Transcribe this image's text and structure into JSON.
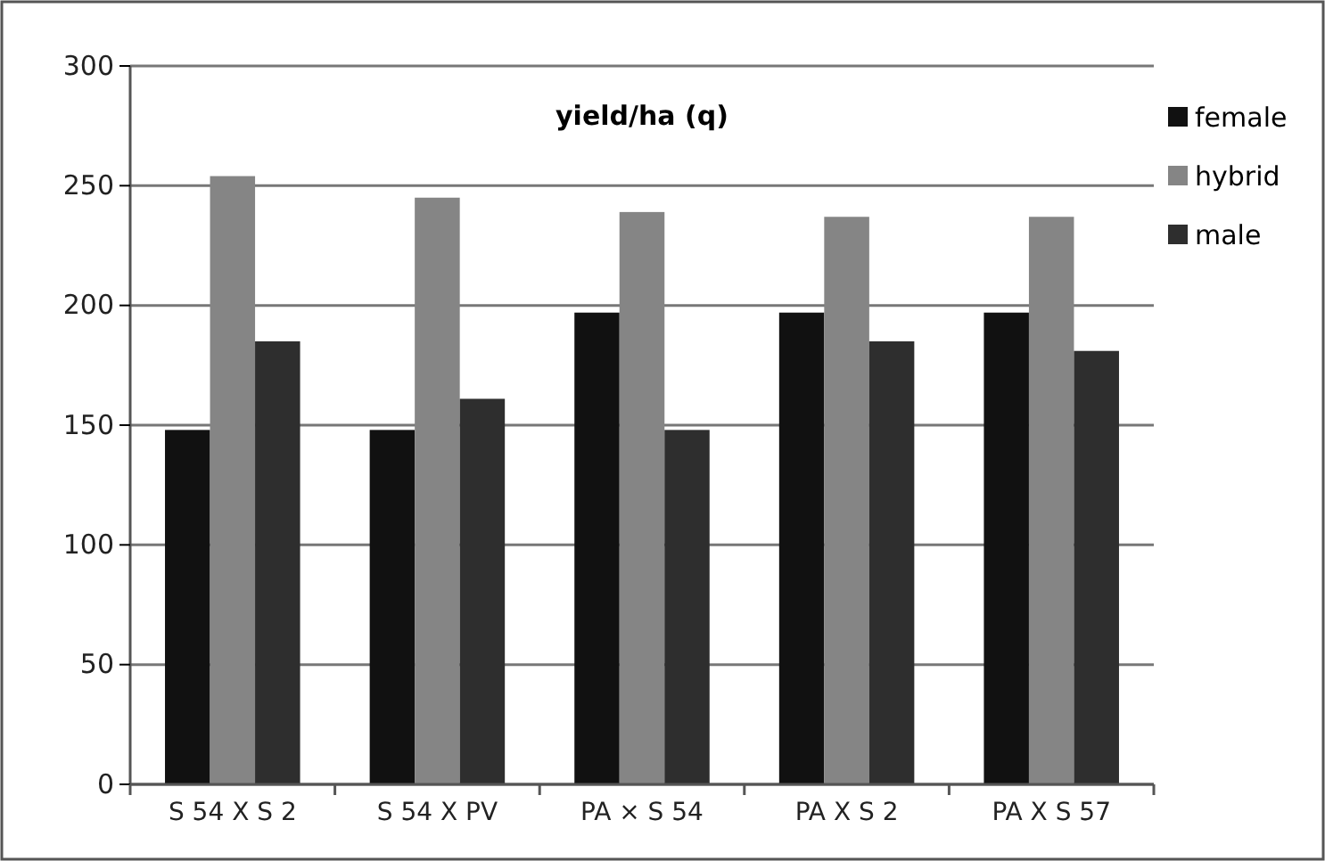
{
  "chart_data": {
    "type": "bar",
    "title": "yield/ha (q)",
    "categories": [
      "S 54 X S 2",
      "S 54 X PV",
      "PA × S 54",
      "PA X S 2",
      "PA X S 57"
    ],
    "series": [
      {
        "name": "female",
        "color": "#111111",
        "values": [
          148,
          148,
          197,
          197,
          197
        ]
      },
      {
        "name": "hybrid",
        "color": "#858585",
        "values": [
          254,
          245,
          239,
          237,
          237
        ]
      },
      {
        "name": "male",
        "color": "#2e2e2e",
        "values": [
          185,
          161,
          148,
          185,
          181
        ]
      }
    ],
    "ylim": [
      0,
      300
    ],
    "yticks": [
      0,
      50,
      100,
      150,
      200,
      250,
      300
    ],
    "grid": "y",
    "legend": "top right"
  }
}
